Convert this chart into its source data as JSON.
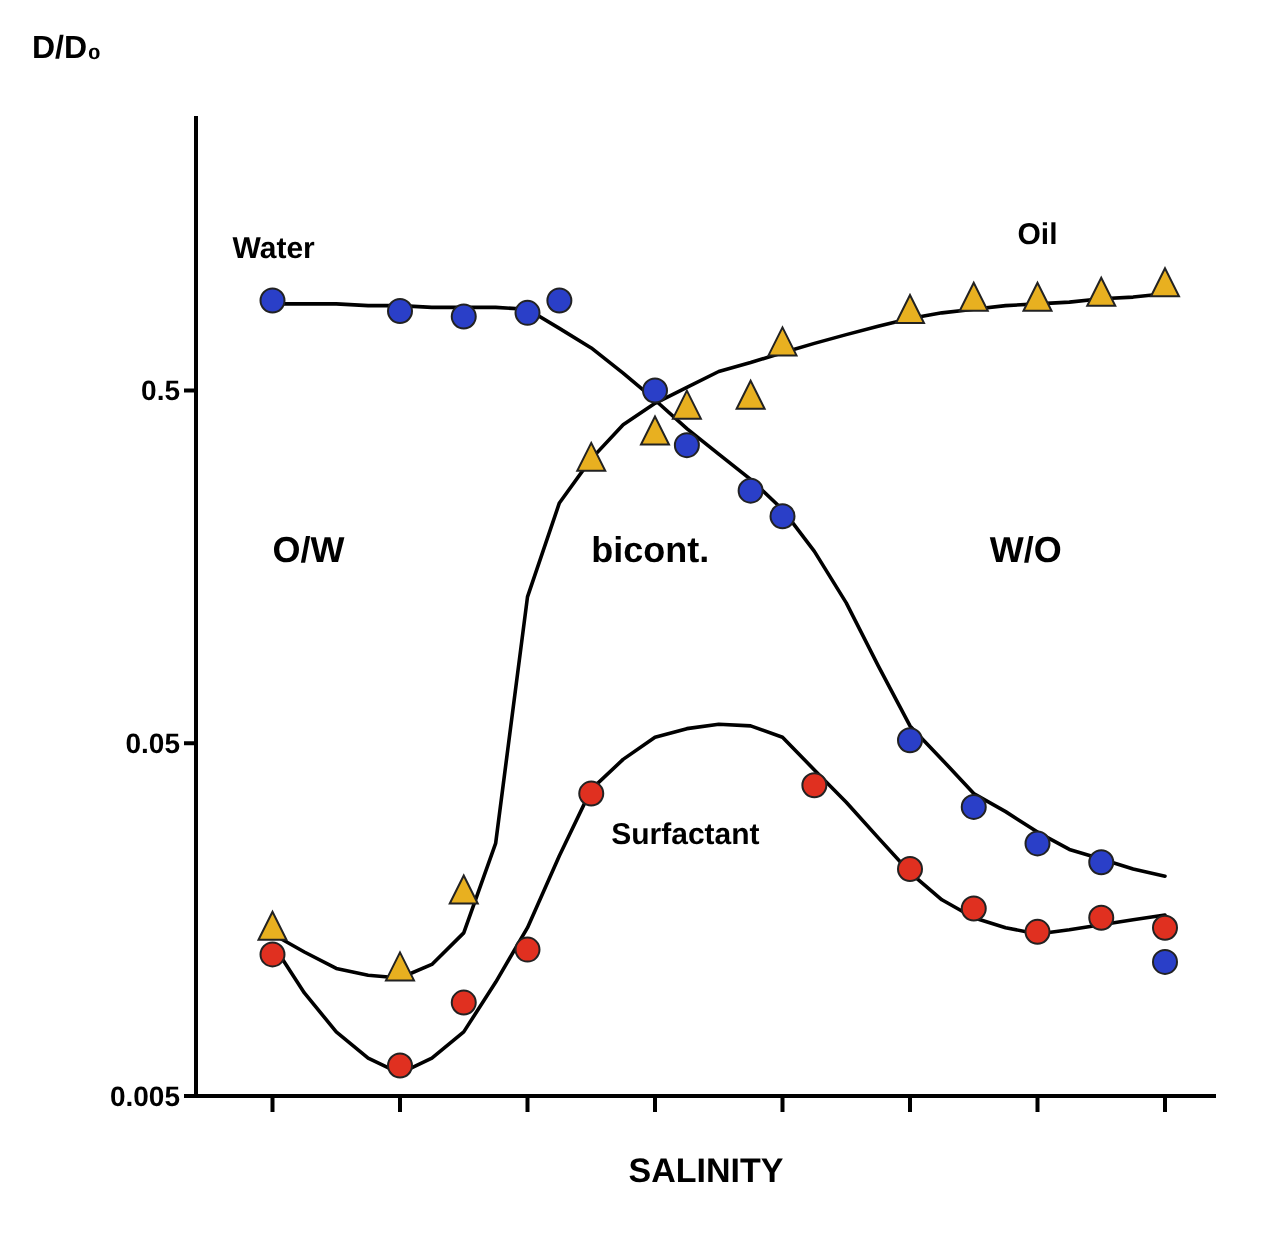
{
  "chart_data": {
    "type": "scatter",
    "xlabel": "SALINITY",
    "ylabel": "D/D₀",
    "log": "y",
    "ylim": [
      0.005,
      3
    ],
    "yticks": [
      0.005,
      0.05,
      0.5
    ],
    "categories": [
      null,
      null,
      null,
      null,
      null,
      null,
      null,
      null,
      null,
      null,
      null,
      null,
      null,
      null,
      null,
      null,
      null,
      null,
      null,
      null,
      null,
      null,
      null,
      null,
      null,
      null,
      null,
      null,
      null
    ],
    "annotations": [
      "O/W",
      "bicont.",
      "W/O"
    ],
    "series": [
      {
        "name": "Water",
        "marker": "circle",
        "color": "#2a3fc8",
        "values": [
          0.9,
          null,
          null,
          null,
          0.84,
          null,
          0.81,
          null,
          0.83,
          0.9,
          null,
          null,
          0.5,
          0.35,
          null,
          0.26,
          0.22,
          null,
          null,
          null,
          0.051,
          null,
          0.033,
          null,
          0.026,
          null,
          0.023,
          null,
          0.012
        ]
      },
      {
        "name": "Oil",
        "marker": "triangle",
        "color": "#e8b020",
        "values": [
          0.015,
          null,
          null,
          null,
          0.0115,
          null,
          0.019,
          null,
          null,
          null,
          0.32,
          null,
          0.38,
          0.45,
          null,
          0.48,
          0.68,
          null,
          null,
          null,
          0.84,
          null,
          0.91,
          null,
          0.91,
          null,
          0.94,
          null,
          1.0
        ]
      },
      {
        "name": "Surfactant",
        "marker": "circle",
        "color": "#e03020",
        "values": [
          0.0126,
          null,
          null,
          null,
          0.0061,
          null,
          0.0092,
          null,
          0.013,
          null,
          0.036,
          null,
          null,
          null,
          null,
          null,
          null,
          0.038,
          null,
          null,
          0.022,
          null,
          0.017,
          null,
          0.0146,
          null,
          0.016,
          null,
          0.015
        ]
      },
      {
        "type": "line",
        "color": "#000000",
        "values": [
          0.88,
          0.88,
          0.88,
          0.87,
          0.87,
          0.86,
          0.86,
          0.86,
          0.85,
          0.75,
          0.66,
          0.56,
          0.47,
          0.39,
          0.33,
          0.28,
          0.23,
          0.175,
          0.125,
          0.083,
          0.056,
          0.045,
          0.036,
          0.032,
          0.028,
          0.025,
          0.0235,
          0.022,
          0.021
        ]
      },
      {
        "type": "line",
        "color": "#000000",
        "values": [
          0.0144,
          0.0128,
          0.0115,
          0.011,
          0.0108,
          0.0118,
          0.0145,
          0.026,
          0.13,
          0.24,
          0.32,
          0.4,
          0.46,
          0.51,
          0.566,
          0.6,
          0.64,
          0.68,
          0.72,
          0.76,
          0.8,
          0.83,
          0.85,
          0.87,
          0.88,
          0.89,
          0.91,
          0.92,
          0.94
        ]
      },
      {
        "type": "line",
        "color": "#000000",
        "values": [
          0.0135,
          0.0098,
          0.0076,
          0.0064,
          0.0058,
          0.0064,
          0.0076,
          0.0105,
          0.015,
          0.024,
          0.037,
          0.045,
          0.052,
          0.055,
          0.0566,
          0.056,
          0.052,
          0.042,
          0.034,
          0.027,
          0.0215,
          0.018,
          0.016,
          0.015,
          0.0144,
          0.0148,
          0.0153,
          0.0158,
          0.0163
        ]
      }
    ]
  }
}
